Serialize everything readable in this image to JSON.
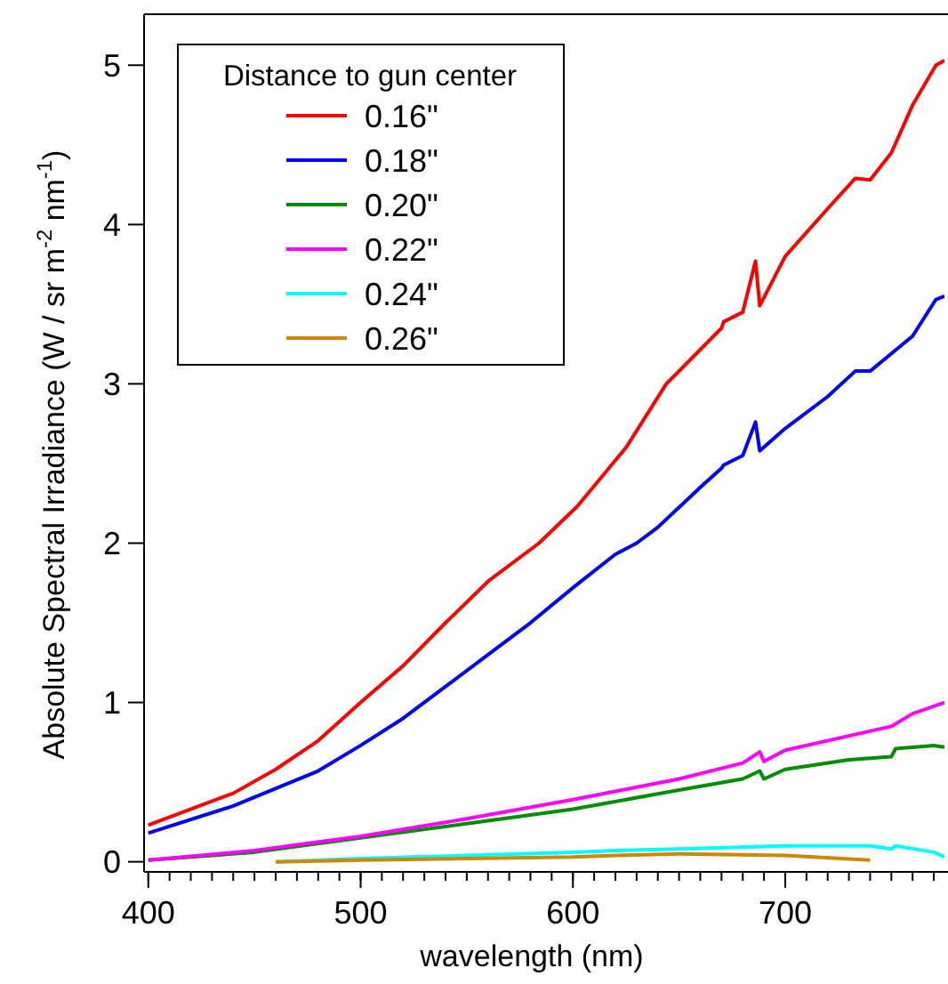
{
  "chart_data": {
    "type": "line",
    "xlabel": "wavelength (nm)",
    "ylabel": "Absolute Spectral Irradiance (W / sr m$^{-2}$ nm$^{-1}$)",
    "legend_title": "Distance to gun center",
    "legend": "top left",
    "grid": false,
    "xlim": [
      398,
      775
    ],
    "xticks": [
      400,
      500,
      600,
      700
    ],
    "ylim": [
      -0.03,
      5.32
    ],
    "yticks": [
      0,
      1,
      2,
      3,
      4,
      5
    ],
    "series": [
      {
        "name": "0.16\"",
        "color": "#ff0000",
        "x": [
          400,
          440,
          460,
          480,
          500,
          520,
          540,
          560,
          584,
          602,
          625,
          644,
          670,
          671,
          680,
          686,
          688,
          700,
          720,
          733,
          740,
          750,
          760,
          771,
          775
        ],
        "values": [
          0.23,
          0.43,
          0.58,
          0.76,
          1.0,
          1.23,
          1.5,
          1.76,
          2.0,
          2.23,
          2.6,
          3.0,
          3.35,
          3.39,
          3.45,
          3.77,
          3.49,
          3.8,
          4.1,
          4.29,
          4.28,
          4.45,
          4.75,
          5.0,
          5.03
        ]
      },
      {
        "name": "0.18\"",
        "color": "#0000ff",
        "x": [
          400,
          440,
          480,
          500,
          520,
          540,
          560,
          580,
          600,
          620,
          630,
          640,
          660,
          670,
          671,
          680,
          686,
          688,
          700,
          720,
          733,
          740,
          760,
          771,
          775
        ],
        "values": [
          0.18,
          0.35,
          0.57,
          0.73,
          0.9,
          1.1,
          1.3,
          1.5,
          1.72,
          1.93,
          2.0,
          2.1,
          2.35,
          2.47,
          2.49,
          2.55,
          2.76,
          2.58,
          2.72,
          2.92,
          3.08,
          3.08,
          3.3,
          3.53,
          3.55
        ]
      },
      {
        "name": "0.20\"",
        "color": "#008c00",
        "x": [
          400,
          450,
          500,
          550,
          600,
          650,
          680,
          688,
          690,
          700,
          730,
          750,
          752,
          770,
          775
        ],
        "values": [
          0.01,
          0.06,
          0.15,
          0.24,
          0.33,
          0.45,
          0.52,
          0.57,
          0.52,
          0.58,
          0.64,
          0.66,
          0.71,
          0.73,
          0.72
        ]
      },
      {
        "name": "0.22\"",
        "color": "#ff00ff",
        "x": [
          400,
          450,
          500,
          550,
          600,
          650,
          680,
          688,
          690,
          700,
          750,
          760,
          775
        ],
        "values": [
          0.01,
          0.07,
          0.16,
          0.27,
          0.39,
          0.52,
          0.62,
          0.69,
          0.63,
          0.7,
          0.85,
          0.93,
          1.0
        ]
      },
      {
        "name": "0.24\"",
        "color": "#00ffff",
        "x": [
          460,
          500,
          550,
          600,
          620,
          650,
          700,
          740,
          750,
          752,
          770,
          775
        ],
        "values": [
          0.0,
          0.02,
          0.04,
          0.06,
          0.07,
          0.08,
          0.1,
          0.1,
          0.08,
          0.1,
          0.06,
          0.03
        ]
      },
      {
        "name": "0.26\"",
        "color": "#cc8800",
        "x": [
          460,
          500,
          550,
          600,
          620,
          650,
          700,
          740
        ],
        "values": [
          0.0,
          0.01,
          0.02,
          0.03,
          0.04,
          0.05,
          0.04,
          0.01
        ]
      }
    ]
  }
}
